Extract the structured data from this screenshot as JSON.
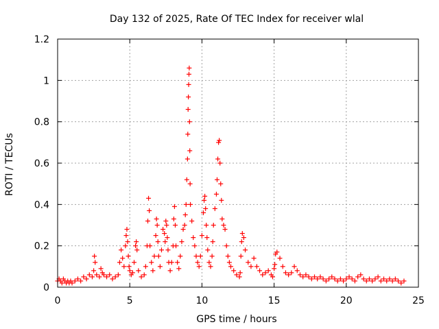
{
  "chart_data": {
    "type": "scatter",
    "title": "Day 132 of 2025, Rate Of TEC Index for receiver wlal",
    "xlabel": "GPS time / hours",
    "ylabel": "ROTI / TECUs",
    "xlim": [
      0,
      25
    ],
    "ylim": [
      0,
      1.2
    ],
    "xticks": [
      0,
      5,
      10,
      15,
      20,
      25
    ],
    "xtick_labels": [
      "0",
      "5",
      "10",
      "15",
      "20",
      "25"
    ],
    "yticks": [
      0,
      0.2,
      0.4,
      0.6,
      0.8,
      1.0,
      1.2
    ],
    "ytick_labels": [
      "0",
      "0.2",
      "0.4",
      "0.6",
      "0.8",
      "1",
      "1.2"
    ],
    "grid": true,
    "marker": "+",
    "color": "#ff0000",
    "series": [
      {
        "name": "ROTI",
        "x": [
          0.0,
          0.1,
          0.2,
          0.3,
          0.4,
          0.5,
          0.6,
          0.7,
          0.8,
          0.9,
          1.0,
          1.2,
          1.4,
          1.6,
          1.8,
          2.0,
          2.2,
          2.4,
          2.5,
          2.55,
          2.6,
          2.7,
          2.9,
          3.0,
          3.1,
          3.2,
          3.4,
          3.6,
          3.8,
          4.0,
          4.2,
          4.3,
          4.4,
          4.5,
          4.6,
          4.7,
          4.75,
          4.8,
          4.85,
          4.9,
          4.95,
          5.0,
          5.1,
          5.2,
          5.3,
          5.4,
          5.45,
          5.5,
          5.6,
          5.8,
          6.0,
          6.1,
          6.2,
          6.25,
          6.3,
          6.35,
          6.4,
          6.5,
          6.6,
          6.7,
          6.8,
          6.85,
          6.9,
          6.95,
          7.0,
          7.1,
          7.2,
          7.3,
          7.4,
          7.45,
          7.5,
          7.55,
          7.6,
          7.65,
          7.7,
          7.8,
          7.9,
          8.0,
          8.05,
          8.1,
          8.15,
          8.2,
          8.3,
          8.4,
          8.5,
          8.6,
          8.7,
          8.8,
          8.85,
          8.9,
          8.95,
          9.0,
          9.02,
          9.04,
          9.06,
          9.08,
          9.1,
          9.12,
          9.14,
          9.16,
          9.18,
          9.2,
          9.3,
          9.4,
          9.5,
          9.6,
          9.7,
          9.8,
          9.9,
          10.0,
          10.1,
          10.15,
          10.2,
          10.25,
          10.3,
          10.35,
          10.4,
          10.5,
          10.6,
          10.7,
          10.75,
          10.8,
          10.9,
          11.0,
          11.05,
          11.1,
          11.15,
          11.2,
          11.25,
          11.3,
          11.35,
          11.4,
          11.5,
          11.6,
          11.7,
          11.8,
          11.9,
          12.0,
          12.2,
          12.4,
          12.6,
          12.65,
          12.7,
          12.75,
          12.8,
          12.9,
          13.0,
          13.2,
          13.4,
          13.6,
          13.8,
          14.0,
          14.2,
          14.4,
          14.6,
          14.8,
          14.9,
          15.0,
          15.05,
          15.1,
          15.2,
          15.4,
          15.6,
          15.8,
          16.0,
          16.2,
          16.4,
          16.6,
          16.8,
          17.0,
          17.2,
          17.4,
          17.6,
          17.8,
          18.0,
          18.2,
          18.4,
          18.6,
          18.8,
          19.0,
          19.2,
          19.4,
          19.6,
          19.8,
          20.0,
          20.2,
          20.4,
          20.6,
          20.8,
          21.0,
          21.2,
          21.4,
          21.6,
          21.8,
          22.0,
          22.2,
          22.4,
          22.6,
          22.8,
          23.0,
          23.2,
          23.4,
          23.6,
          23.8,
          24.0
        ],
        "y": [
          0.03,
          0.04,
          0.03,
          0.02,
          0.04,
          0.03,
          0.02,
          0.03,
          0.02,
          0.03,
          0.02,
          0.03,
          0.04,
          0.03,
          0.05,
          0.04,
          0.06,
          0.05,
          0.08,
          0.15,
          0.12,
          0.06,
          0.05,
          0.09,
          0.07,
          0.06,
          0.05,
          0.06,
          0.04,
          0.05,
          0.06,
          0.12,
          0.18,
          0.14,
          0.1,
          0.2,
          0.25,
          0.28,
          0.22,
          0.15,
          0.1,
          0.08,
          0.06,
          0.07,
          0.12,
          0.2,
          0.22,
          0.18,
          0.08,
          0.05,
          0.06,
          0.1,
          0.2,
          0.32,
          0.43,
          0.37,
          0.2,
          0.12,
          0.08,
          0.15,
          0.25,
          0.33,
          0.3,
          0.22,
          0.15,
          0.1,
          0.18,
          0.28,
          0.26,
          0.22,
          0.32,
          0.3,
          0.24,
          0.18,
          0.12,
          0.08,
          0.12,
          0.2,
          0.33,
          0.39,
          0.3,
          0.2,
          0.12,
          0.09,
          0.15,
          0.22,
          0.28,
          0.3,
          0.35,
          0.4,
          0.52,
          0.62,
          0.74,
          0.86,
          0.92,
          0.98,
          1.03,
          1.06,
          0.8,
          0.66,
          0.5,
          0.4,
          0.32,
          0.24,
          0.2,
          0.15,
          0.12,
          0.1,
          0.15,
          0.25,
          0.36,
          0.42,
          0.44,
          0.38,
          0.3,
          0.24,
          0.18,
          0.12,
          0.1,
          0.15,
          0.22,
          0.3,
          0.38,
          0.45,
          0.52,
          0.62,
          0.7,
          0.71,
          0.6,
          0.5,
          0.42,
          0.33,
          0.3,
          0.28,
          0.2,
          0.15,
          0.12,
          0.1,
          0.08,
          0.06,
          0.05,
          0.07,
          0.15,
          0.22,
          0.26,
          0.24,
          0.18,
          0.12,
          0.1,
          0.14,
          0.1,
          0.08,
          0.06,
          0.07,
          0.08,
          0.06,
          0.05,
          0.09,
          0.11,
          0.16,
          0.17,
          0.14,
          0.1,
          0.07,
          0.06,
          0.07,
          0.1,
          0.08,
          0.06,
          0.05,
          0.06,
          0.05,
          0.04,
          0.05,
          0.04,
          0.05,
          0.04,
          0.03,
          0.04,
          0.05,
          0.04,
          0.03,
          0.04,
          0.03,
          0.04,
          0.05,
          0.04,
          0.03,
          0.05,
          0.06,
          0.04,
          0.03,
          0.04,
          0.03,
          0.04,
          0.05,
          0.03,
          0.04,
          0.03,
          0.04,
          0.03,
          0.04,
          0.03,
          0.02,
          0.03
        ]
      }
    ]
  }
}
